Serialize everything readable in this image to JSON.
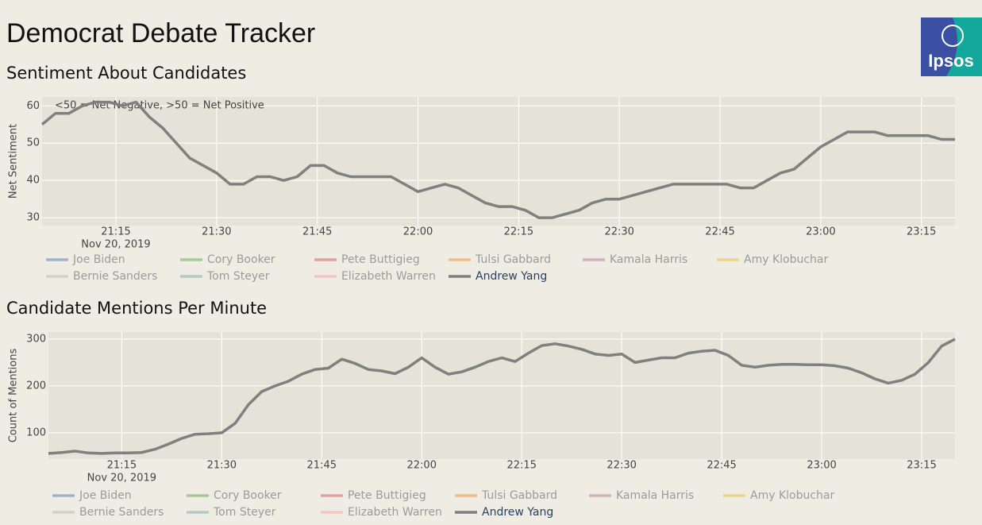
{
  "header": {
    "title": "Democrat Debate Tracker",
    "logo": "Ipsos"
  },
  "chart_data": [
    {
      "type": "line",
      "title": "Sentiment About Candidates",
      "y_label": "Net Sentiment",
      "annotation": "<50 = Net Negative, >50 = Net Positive",
      "x_date_label": "Nov 20, 2019",
      "grid": true,
      "x": [
        "2019-11-20 21:04",
        "2019-11-20 21:06",
        "2019-11-20 21:08",
        "2019-11-20 21:10",
        "2019-11-20 21:12",
        "2019-11-20 21:14",
        "2019-11-20 21:16",
        "2019-11-20 21:18",
        "2019-11-20 21:20",
        "2019-11-20 21:22",
        "2019-11-20 21:24",
        "2019-11-20 21:26",
        "2019-11-20 21:28",
        "2019-11-20 21:30",
        "2019-11-20 21:32",
        "2019-11-20 21:34",
        "2019-11-20 21:36",
        "2019-11-20 21:38",
        "2019-11-20 21:40",
        "2019-11-20 21:42",
        "2019-11-20 21:44",
        "2019-11-20 21:46",
        "2019-11-20 21:48",
        "2019-11-20 21:50",
        "2019-11-20 21:52",
        "2019-11-20 21:54",
        "2019-11-20 21:56",
        "2019-11-20 21:58",
        "2019-11-20 22:00",
        "2019-11-20 22:02",
        "2019-11-20 22:04",
        "2019-11-20 22:06",
        "2019-11-20 22:08",
        "2019-11-20 22:10",
        "2019-11-20 22:12",
        "2019-11-20 22:14",
        "2019-11-20 22:16",
        "2019-11-20 22:18",
        "2019-11-20 22:20",
        "2019-11-20 22:22",
        "2019-11-20 22:24",
        "2019-11-20 22:26",
        "2019-11-20 22:28",
        "2019-11-20 22:30",
        "2019-11-20 22:32",
        "2019-11-20 22:34",
        "2019-11-20 22:36",
        "2019-11-20 22:38",
        "2019-11-20 22:40",
        "2019-11-20 22:42",
        "2019-11-20 22:44",
        "2019-11-20 22:46",
        "2019-11-20 22:48",
        "2019-11-20 22:50",
        "2019-11-20 22:52",
        "2019-11-20 22:54",
        "2019-11-20 22:56",
        "2019-11-20 22:58",
        "2019-11-20 23:00",
        "2019-11-20 23:02",
        "2019-11-20 23:04",
        "2019-11-20 23:06",
        "2019-11-20 23:08",
        "2019-11-20 23:10",
        "2019-11-20 23:12",
        "2019-11-20 23:14",
        "2019-11-20 23:16",
        "2019-11-20 23:18",
        "2019-11-20 23:20"
      ],
      "xlim": [
        "2019-11-20 21:04",
        "2019-11-20 23:20"
      ],
      "xticks": [
        {
          "value": "2019-11-20 21:15",
          "label": "21:15"
        },
        {
          "value": "2019-11-20 21:30",
          "label": "21:30"
        },
        {
          "value": "2019-11-20 21:45",
          "label": "21:45"
        },
        {
          "value": "2019-11-20 22:00",
          "label": "22:00"
        },
        {
          "value": "2019-11-20 22:15",
          "label": "22:15"
        },
        {
          "value": "2019-11-20 22:30",
          "label": "22:30"
        },
        {
          "value": "2019-11-20 22:45",
          "label": "22:45"
        },
        {
          "value": "2019-11-20 23:00",
          "label": "23:00"
        },
        {
          "value": "2019-11-20 23:15",
          "label": "23:15"
        }
      ],
      "ylim": [
        27.9,
        62.4
      ],
      "yticks": [
        30,
        40,
        50,
        60
      ],
      "series": [
        {
          "name": "Joe Biden",
          "color": "#9fb4cb",
          "visible": false
        },
        {
          "name": "Cory Booker",
          "color": "#a8c99a",
          "visible": false
        },
        {
          "name": "Pete Buttigieg",
          "color": "#e3a29c",
          "visible": false
        },
        {
          "name": "Tulsi Gabbard",
          "color": "#efbf86",
          "visible": false
        },
        {
          "name": "Kamala Harris",
          "color": "#cdb3bd",
          "visible": false
        },
        {
          "name": "Amy Klobuchar",
          "color": "#ecd58f",
          "visible": false
        },
        {
          "name": "Bernie Sanders",
          "color": "#d5d2c5",
          "visible": false
        },
        {
          "name": "Tom Steyer",
          "color": "#b3cbc4",
          "visible": false
        },
        {
          "name": "Elizabeth Warren",
          "color": "#f3c6c2",
          "visible": false
        },
        {
          "name": "Andrew Yang",
          "color": "#808080",
          "visible": true,
          "values": [
            55,
            58,
            58,
            60,
            61,
            61,
            60,
            61,
            57,
            54,
            50,
            46,
            44,
            42,
            39,
            39,
            41,
            41,
            40,
            41,
            44,
            44,
            42,
            41,
            41,
            41,
            41,
            39,
            37,
            38,
            39,
            38,
            36,
            34,
            33,
            33,
            32,
            30,
            30,
            31,
            32,
            34,
            35,
            35,
            36,
            37,
            38,
            39,
            39,
            39,
            39,
            39,
            38,
            38,
            40,
            42,
            43,
            46,
            49,
            51,
            53,
            53,
            53,
            52,
            52,
            52,
            52,
            51,
            51
          ]
        }
      ]
    },
    {
      "type": "line",
      "title": "Candidate Mentions Per Minute",
      "y_label": "Count of Mentions",
      "x_date_label": "Nov 20, 2019",
      "grid": true,
      "x": [
        "2019-11-20 21:04",
        "2019-11-20 21:06",
        "2019-11-20 21:08",
        "2019-11-20 21:10",
        "2019-11-20 21:12",
        "2019-11-20 21:14",
        "2019-11-20 21:16",
        "2019-11-20 21:18",
        "2019-11-20 21:20",
        "2019-11-20 21:22",
        "2019-11-20 21:24",
        "2019-11-20 21:26",
        "2019-11-20 21:28",
        "2019-11-20 21:30",
        "2019-11-20 21:32",
        "2019-11-20 21:34",
        "2019-11-20 21:36",
        "2019-11-20 21:38",
        "2019-11-20 21:40",
        "2019-11-20 21:42",
        "2019-11-20 21:44",
        "2019-11-20 21:46",
        "2019-11-20 21:48",
        "2019-11-20 21:50",
        "2019-11-20 21:52",
        "2019-11-20 21:54",
        "2019-11-20 21:56",
        "2019-11-20 21:58",
        "2019-11-20 22:00",
        "2019-11-20 22:02",
        "2019-11-20 22:04",
        "2019-11-20 22:06",
        "2019-11-20 22:08",
        "2019-11-20 22:10",
        "2019-11-20 22:12",
        "2019-11-20 22:14",
        "2019-11-20 22:16",
        "2019-11-20 22:18",
        "2019-11-20 22:20",
        "2019-11-20 22:22",
        "2019-11-20 22:24",
        "2019-11-20 22:26",
        "2019-11-20 22:28",
        "2019-11-20 22:30",
        "2019-11-20 22:32",
        "2019-11-20 22:34",
        "2019-11-20 22:36",
        "2019-11-20 22:38",
        "2019-11-20 22:40",
        "2019-11-20 22:42",
        "2019-11-20 22:44",
        "2019-11-20 22:46",
        "2019-11-20 22:48",
        "2019-11-20 22:50",
        "2019-11-20 22:52",
        "2019-11-20 22:54",
        "2019-11-20 22:56",
        "2019-11-20 22:58",
        "2019-11-20 23:00",
        "2019-11-20 23:02",
        "2019-11-20 23:04",
        "2019-11-20 23:06",
        "2019-11-20 23:08",
        "2019-11-20 23:10",
        "2019-11-20 23:12",
        "2019-11-20 23:14",
        "2019-11-20 23:16",
        "2019-11-20 23:18",
        "2019-11-20 23:20"
      ],
      "xlim": [
        "2019-11-20 21:04",
        "2019-11-20 23:20"
      ],
      "xticks": [
        {
          "value": "2019-11-20 21:15",
          "label": "21:15"
        },
        {
          "value": "2019-11-20 21:30",
          "label": "21:30"
        },
        {
          "value": "2019-11-20 21:45",
          "label": "21:45"
        },
        {
          "value": "2019-11-20 22:00",
          "label": "22:00"
        },
        {
          "value": "2019-11-20 22:15",
          "label": "22:15"
        },
        {
          "value": "2019-11-20 22:30",
          "label": "22:30"
        },
        {
          "value": "2019-11-20 22:45",
          "label": "22:45"
        },
        {
          "value": "2019-11-20 23:00",
          "label": "23:00"
        },
        {
          "value": "2019-11-20 23:15",
          "label": "23:15"
        }
      ],
      "ylim": [
        44,
        315
      ],
      "yticks": [
        100,
        200,
        300
      ],
      "series": [
        {
          "name": "Joe Biden",
          "color": "#9fb4cb",
          "visible": false
        },
        {
          "name": "Cory Booker",
          "color": "#a8c99a",
          "visible": false
        },
        {
          "name": "Pete Buttigieg",
          "color": "#e3a29c",
          "visible": false
        },
        {
          "name": "Tulsi Gabbard",
          "color": "#efbf86",
          "visible": false
        },
        {
          "name": "Kamala Harris",
          "color": "#cdb3bd",
          "visible": false
        },
        {
          "name": "Amy Klobuchar",
          "color": "#ecd58f",
          "visible": false
        },
        {
          "name": "Bernie Sanders",
          "color": "#d5d2c5",
          "visible": false
        },
        {
          "name": "Tom Steyer",
          "color": "#b3cbc4",
          "visible": false
        },
        {
          "name": "Elizabeth Warren",
          "color": "#f3c6c2",
          "visible": false
        },
        {
          "name": "Andrew Yang",
          "color": "#808080",
          "visible": true,
          "values": [
            56,
            58,
            61,
            57,
            56,
            57,
            57,
            58,
            65,
            76,
            88,
            97,
            98,
            100,
            120,
            160,
            188,
            200,
            210,
            225,
            235,
            238,
            257,
            248,
            235,
            232,
            226,
            240,
            260,
            240,
            225,
            230,
            240,
            252,
            260,
            252,
            270,
            286,
            290,
            285,
            278,
            268,
            265,
            268,
            250,
            255,
            260,
            260,
            270,
            274,
            276,
            265,
            244,
            240,
            244,
            246,
            246,
            245,
            245,
            243,
            238,
            228,
            215,
            206,
            212,
            225,
            250,
            285,
            300
          ]
        }
      ]
    }
  ]
}
